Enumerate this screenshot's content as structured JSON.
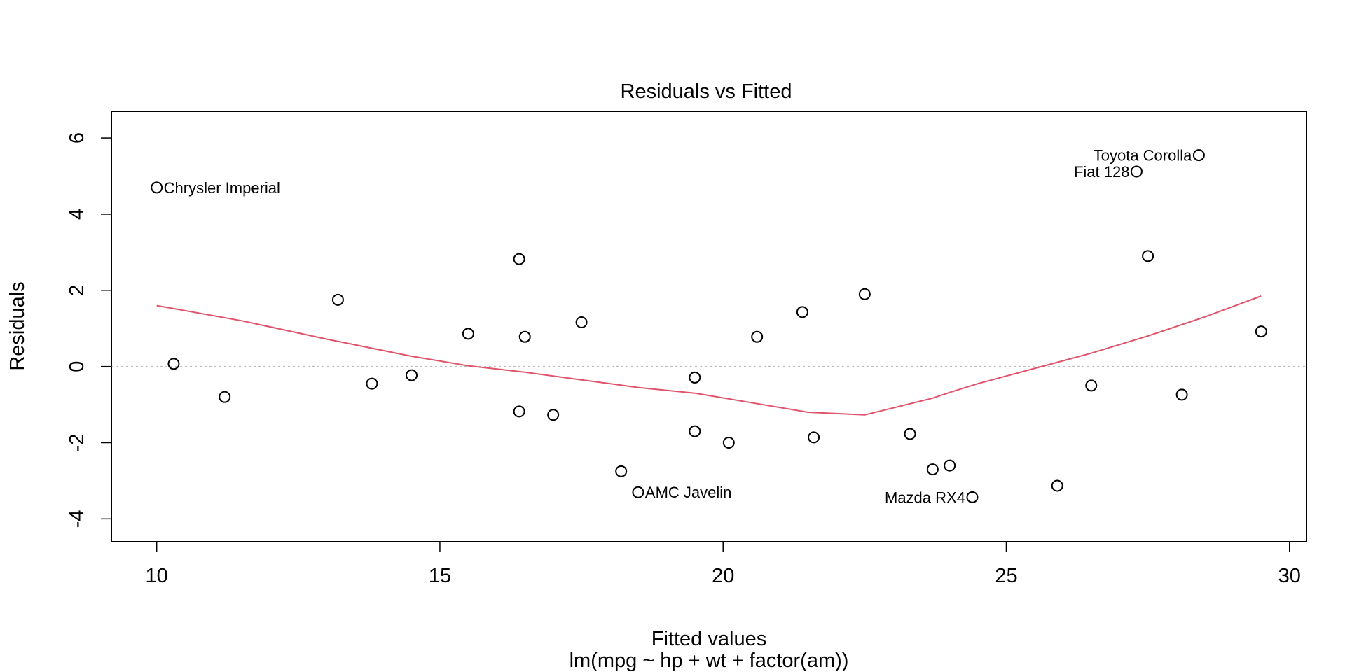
{
  "chart_data": {
    "type": "scatter",
    "title": "Residuals vs Fitted",
    "xlabel": "Fitted values",
    "sub": "lm(mpg ~ hp + wt + factor(am))",
    "ylabel": "Residuals",
    "xlim": [
      9.2,
      30.3
    ],
    "ylim": [
      -4.6,
      6.7
    ],
    "xticks": [
      10,
      15,
      20,
      25,
      30
    ],
    "yticks": [
      -4,
      -2,
      0,
      2,
      4,
      6
    ],
    "zero_line": 0,
    "colors": {
      "points": "#000000",
      "smooth": "#DF536B",
      "zero_line": "#BEBEBE",
      "frame": "#000000"
    },
    "points": [
      {
        "x": 10.0,
        "y": 4.7,
        "label": "Chrysler Imperial",
        "label_side": "right"
      },
      {
        "x": 10.3,
        "y": 0.07
      },
      {
        "x": 11.2,
        "y": -0.8
      },
      {
        "x": 13.2,
        "y": 1.75
      },
      {
        "x": 13.8,
        "y": -0.45
      },
      {
        "x": 14.5,
        "y": -0.23
      },
      {
        "x": 15.5,
        "y": 0.86
      },
      {
        "x": 16.4,
        "y": 2.82
      },
      {
        "x": 16.4,
        "y": -1.18
      },
      {
        "x": 16.5,
        "y": 0.78
      },
      {
        "x": 17.0,
        "y": -1.27
      },
      {
        "x": 17.5,
        "y": 1.16
      },
      {
        "x": 18.2,
        "y": -2.75
      },
      {
        "x": 18.5,
        "y": -3.3,
        "label": "AMC Javelin",
        "label_side": "right"
      },
      {
        "x": 19.5,
        "y": -0.29
      },
      {
        "x": 19.5,
        "y": -1.7
      },
      {
        "x": 20.1,
        "y": -2.0
      },
      {
        "x": 20.6,
        "y": 0.78
      },
      {
        "x": 21.4,
        "y": 1.43
      },
      {
        "x": 21.6,
        "y": -1.86
      },
      {
        "x": 22.5,
        "y": 1.9
      },
      {
        "x": 23.3,
        "y": -1.77
      },
      {
        "x": 23.7,
        "y": -2.7
      },
      {
        "x": 24.0,
        "y": -2.6
      },
      {
        "x": 24.4,
        "y": -3.43,
        "label": "Mazda RX4",
        "label_side": "left"
      },
      {
        "x": 25.9,
        "y": -3.13
      },
      {
        "x": 26.5,
        "y": -0.5
      },
      {
        "x": 27.3,
        "y": 5.12,
        "label": "Fiat 128",
        "label_side": "left"
      },
      {
        "x": 27.5,
        "y": 2.9
      },
      {
        "x": 28.1,
        "y": -0.74
      },
      {
        "x": 28.4,
        "y": 5.55,
        "label": "Toyota Corolla",
        "label_side": "left"
      },
      {
        "x": 29.5,
        "y": 0.92
      }
    ],
    "smooth_line": {
      "x": [
        10.0,
        11.5,
        13.0,
        14.5,
        15.5,
        16.5,
        17.5,
        18.5,
        19.5,
        20.5,
        21.5,
        22.5,
        23.7,
        24.0,
        24.5,
        25.5,
        26.5,
        27.5,
        28.5,
        29.5
      ],
      "y": [
        1.6,
        1.2,
        0.72,
        0.27,
        0.02,
        -0.15,
        -0.35,
        -0.55,
        -0.7,
        -0.95,
        -1.2,
        -1.27,
        -0.83,
        -0.68,
        -0.45,
        -0.05,
        0.35,
        0.8,
        1.3,
        1.85
      ]
    }
  }
}
